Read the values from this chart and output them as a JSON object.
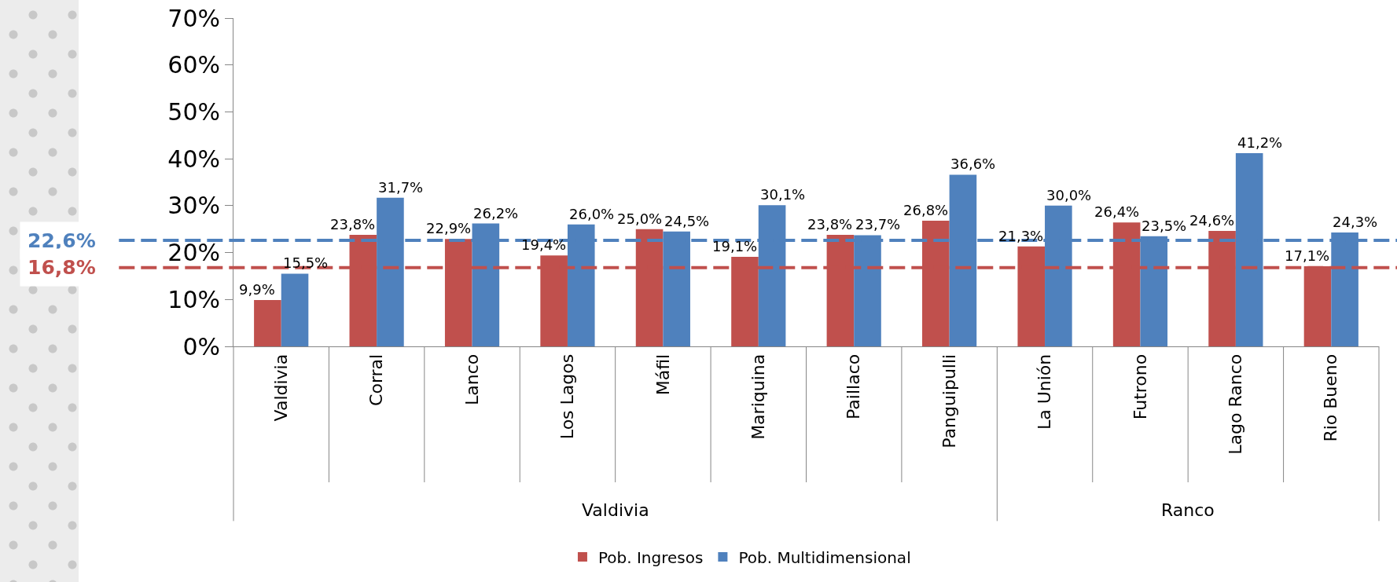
{
  "chart_data": {
    "type": "bar",
    "categories": [
      "Valdivia",
      "Corral",
      "Lanco",
      "Los Lagos",
      "Máfil",
      "Mariquina",
      "Paillaco",
      "Panguipulli",
      "La Unión",
      "Futrono",
      "Lago Ranco",
      "Rio Bueno"
    ],
    "series": [
      {
        "name": "Pob. Ingresos",
        "color": "#c0504d",
        "values": [
          9.9,
          23.8,
          22.9,
          19.4,
          25.0,
          19.1,
          23.8,
          26.8,
          21.3,
          26.4,
          24.6,
          17.1
        ],
        "value_labels": [
          "9,9%",
          "23,8%",
          "22,9%",
          "19,4%",
          "25,0%",
          "19,1%",
          "23,8%",
          "26,8%",
          "21,3%",
          "26,4%",
          "24,6%",
          "17,1%"
        ]
      },
      {
        "name": "Pob. Multidimensional",
        "color": "#4f81bd",
        "values": [
          15.5,
          31.7,
          26.2,
          26.0,
          24.5,
          30.1,
          23.7,
          36.6,
          30.0,
          23.5,
          41.2,
          24.3
        ],
        "value_labels": [
          "15,5%",
          "31,7%",
          "26,2%",
          "26,0%",
          "24,5%",
          "30,1%",
          "23,7%",
          "36,6%",
          "30,0%",
          "23,5%",
          "41,2%",
          "24,3%"
        ]
      }
    ],
    "ylim": [
      0,
      70
    ],
    "yticks": [
      {
        "value": 0,
        "label": "0%"
      },
      {
        "value": 10,
        "label": "10%"
      },
      {
        "value": 20,
        "label": "20%"
      },
      {
        "value": 30,
        "label": "30%"
      },
      {
        "value": 40,
        "label": "40%"
      },
      {
        "value": 50,
        "label": "50%"
      },
      {
        "value": 60,
        "label": "60%"
      },
      {
        "value": 70,
        "label": "70%"
      }
    ],
    "ref_lines": [
      {
        "axis": "y",
        "value": 22.6,
        "label": "22,6%",
        "color": "#4f81bd",
        "line_style": "dashed"
      },
      {
        "axis": "y",
        "value": 16.8,
        "label": "16,8%",
        "color": "#c0504d",
        "line_style": "dashed"
      }
    ],
    "annotations": [
      "Valdivia",
      "Ranco"
    ],
    "grid": false,
    "legend": "bottom"
  }
}
